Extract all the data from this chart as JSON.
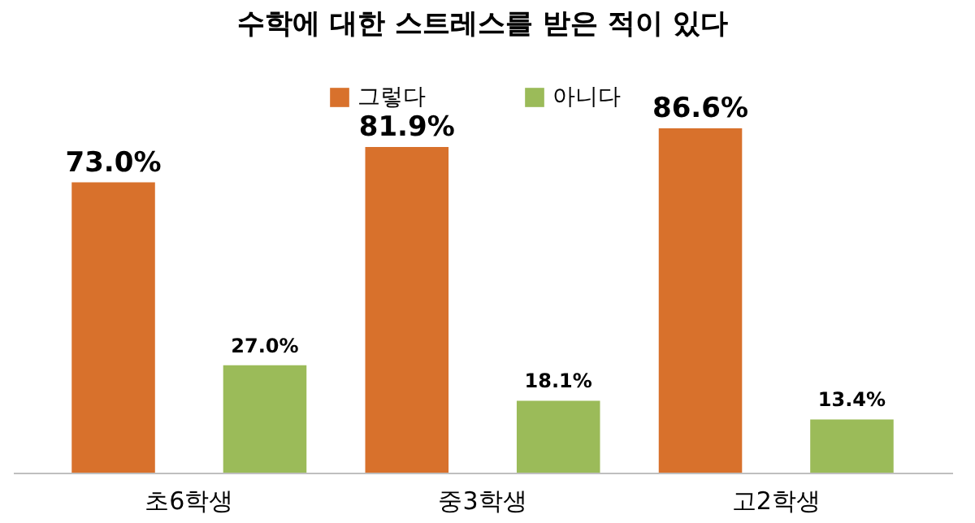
{
  "chart_data": {
    "type": "bar",
    "title": "수학에 대한 스트레스를 받은 적이 있다",
    "categories": [
      "초6학생",
      "중3학생",
      "고2학생"
    ],
    "series": [
      {
        "name": "그렇다",
        "color": "#d8712c",
        "values": [
          73.0,
          81.9,
          86.6
        ],
        "value_labels": [
          "73.0%",
          "81.9%",
          "86.6%"
        ]
      },
      {
        "name": "아니다",
        "color": "#9bbb59",
        "values": [
          27.0,
          18.1,
          13.4
        ],
        "value_labels": [
          "27.0%",
          "18.1%",
          "13.4%"
        ]
      }
    ],
    "legend": "top"
  }
}
